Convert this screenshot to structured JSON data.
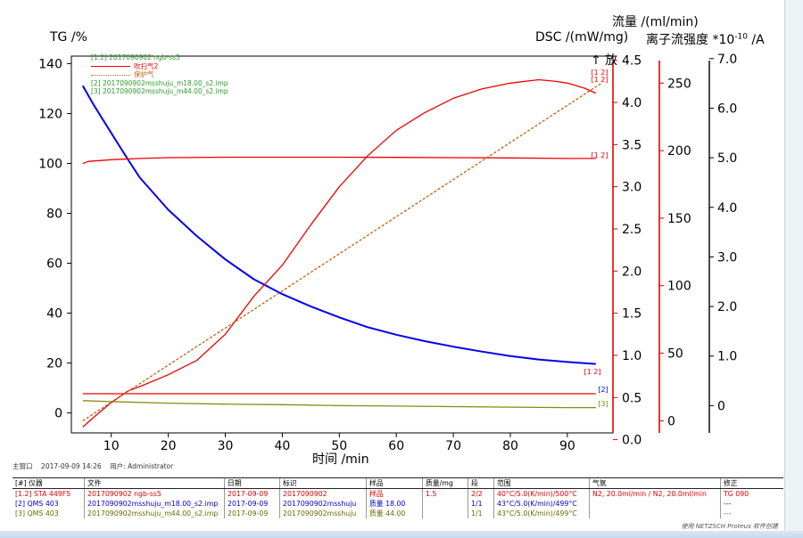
{
  "chart_data": {
    "type": "line",
    "x": {
      "label": "时间 /min",
      "range": [
        3,
        98
      ],
      "ticks": [
        10,
        20,
        30,
        40,
        50,
        60,
        70,
        80,
        90
      ]
    },
    "axes": {
      "tg": {
        "label": "TG /%",
        "range": [
          -8,
          143
        ],
        "ticks": [
          0,
          20,
          40,
          60,
          80,
          100,
          120,
          140
        ]
      },
      "dsc": {
        "label": "DSC /(mW/mg)",
        "range": [
          0.08,
          4.55
        ],
        "ticks": [
          0.0,
          0.5,
          1.0,
          1.5,
          2.0,
          2.5,
          3.0,
          3.5,
          4.0,
          4.5
        ],
        "tick_labels": [
          "0.0",
          "0.5",
          "1.0",
          "1.5",
          "2.0",
          "2.5",
          "3.0",
          "3.5",
          "4.0",
          "4.5"
        ],
        "exo_label": "↑ 放"
      },
      "flow": {
        "label": "流量 /(ml/min)",
        "range": [
          -9,
          270
        ],
        "ticks": [
          0,
          50,
          100,
          150,
          200,
          250
        ]
      },
      "ion": {
        "label": "离子流强度 *10-10 /A",
        "label_parts": [
          "离子流强度 *10",
          "-10",
          " /A"
        ],
        "range": [
          -0.55,
          7.05
        ],
        "ticks": [
          0.0,
          1.0,
          2.0,
          3.0,
          4.0,
          5.0,
          6.0,
          7.0
        ],
        "tick_labels": [
          "0",
          "1.0",
          "2.0",
          "3.0",
          "4.0",
          "5.0",
          "6.0",
          "7.0"
        ]
      }
    },
    "series": [
      {
        "name": "[2] 2017090902msshuju_m18.00_s2.imp",
        "axis": "ion",
        "color": "#0000ee",
        "x": [
          5,
          7,
          10,
          13,
          15,
          20,
          25,
          30,
          35,
          40,
          45,
          50,
          55,
          60,
          65,
          70,
          75,
          80,
          85,
          90,
          95
        ],
        "y": [
          6.45,
          6.05,
          5.5,
          4.95,
          4.6,
          3.95,
          3.42,
          2.95,
          2.55,
          2.25,
          2.0,
          1.78,
          1.58,
          1.43,
          1.3,
          1.19,
          1.09,
          1.0,
          0.93,
          0.88,
          0.84
        ]
      },
      {
        "name": "[3] 2017090902msshuju_m44.00_s2.imp",
        "axis": "ion",
        "color": "#8a8a10",
        "x": [
          5,
          10,
          20,
          30,
          40,
          50,
          60,
          70,
          80,
          90,
          95
        ],
        "y": [
          0.1,
          0.08,
          0.05,
          0.03,
          0.02,
          0.0,
          -0.01,
          -0.02,
          -0.03,
          -0.04,
          -0.04
        ]
      },
      {
        "name": "[1,2] 2017090902 ngb-ss5",
        "axis": "tg",
        "color": "#ee0000",
        "x": [
          5,
          6,
          10,
          15,
          20,
          30,
          40,
          50,
          60,
          70,
          80,
          90,
          95
        ],
        "y": [
          100,
          100.8,
          101.5,
          102.0,
          102.3,
          102.5,
          102.5,
          102.5,
          102.4,
          102.3,
          102.2,
          102.0,
          102.0
        ]
      },
      {
        "name": "[1,2] 2017090902 ngb-ss5 DSC",
        "axis": "dsc",
        "color": "#ee0000",
        "x": [
          5,
          7,
          10,
          13,
          15,
          20,
          25,
          30,
          35,
          40,
          45,
          50,
          55,
          60,
          65,
          70,
          75,
          80,
          85,
          88,
          90,
          93,
          95
        ],
        "y": [
          0.15,
          0.27,
          0.44,
          0.58,
          0.63,
          0.77,
          0.94,
          1.25,
          1.7,
          2.07,
          2.55,
          3.0,
          3.37,
          3.67,
          3.88,
          4.05,
          4.16,
          4.23,
          4.27,
          4.25,
          4.23,
          4.17,
          4.11
        ]
      },
      {
        "name": "吹扫气2",
        "axis": "flow",
        "color": "#ee0000",
        "x": [
          5,
          95
        ],
        "y": [
          20,
          20
        ]
      },
      {
        "name": "保护气",
        "axis": "flow",
        "color": "#c06010",
        "dash": "3,2",
        "x": [
          5,
          96
        ],
        "y": [
          0,
          250
        ]
      }
    ],
    "legend": {
      "placement": "top-left",
      "lines": [
        "[1.2] 2017090902 ngb-ss5",
        "吹扫气2",
        "保护气",
        "[2] 2017090902msshuju_m18.00_s2.imp",
        "[3] 2017090902msshuju_m44.00_s2.imp"
      ],
      "colors": [
        "#2a9a2a",
        "#ee0000",
        "#c06010",
        "#2a9a2a",
        "#2a9a2a"
      ]
    },
    "annotations": [
      "[1 2]",
      "[1 2]",
      "[1 2]",
      "[2]",
      "[3]",
      "[1 2]"
    ],
    "grid": false
  },
  "footer": {
    "left": "主窗口",
    "date": "2017-09-09 14:26",
    "user": "用户: Administrator",
    "copyright": "使用 NETZSCH Proteus 软件创建"
  },
  "table": {
    "headers": [
      "[#] 仪器",
      "文件",
      "日期",
      "标识",
      "样品",
      "质量/mg",
      "段",
      "范围",
      "气氛",
      "修正"
    ],
    "rows": [
      {
        "color": "#dd0000",
        "cells": [
          "[1.2] STA 449F5",
          "2017090902 ngb-ss5",
          "2017-09-09",
          "2017090902",
          "样品",
          "1.5",
          "2/2",
          "40°C/5.0(K/min)/500°C",
          "N2, 20.0ml/min / N2, 20.0ml/min",
          "TG 090"
        ]
      },
      {
        "color": "#0000cc",
        "cells": [
          "[2] QMS 403",
          "2017090902msshuju_m18.00_s2.imp",
          "2017-09-09",
          "2017090902msshuju",
          "质量  18.00",
          "",
          "1/1",
          "43°C/5.0(K/min)/499°C",
          "",
          "---"
        ]
      },
      {
        "color": "#6a6a00",
        "cells": [
          "[3] QMS 403",
          "2017090902msshuju_m44.00_s2.imp",
          "2017-09-09",
          "2017090902msshuju",
          "质量  44.00",
          "",
          "1/1",
          "43°C/5.0(K/min)/499°C",
          "",
          "---"
        ]
      }
    ]
  }
}
